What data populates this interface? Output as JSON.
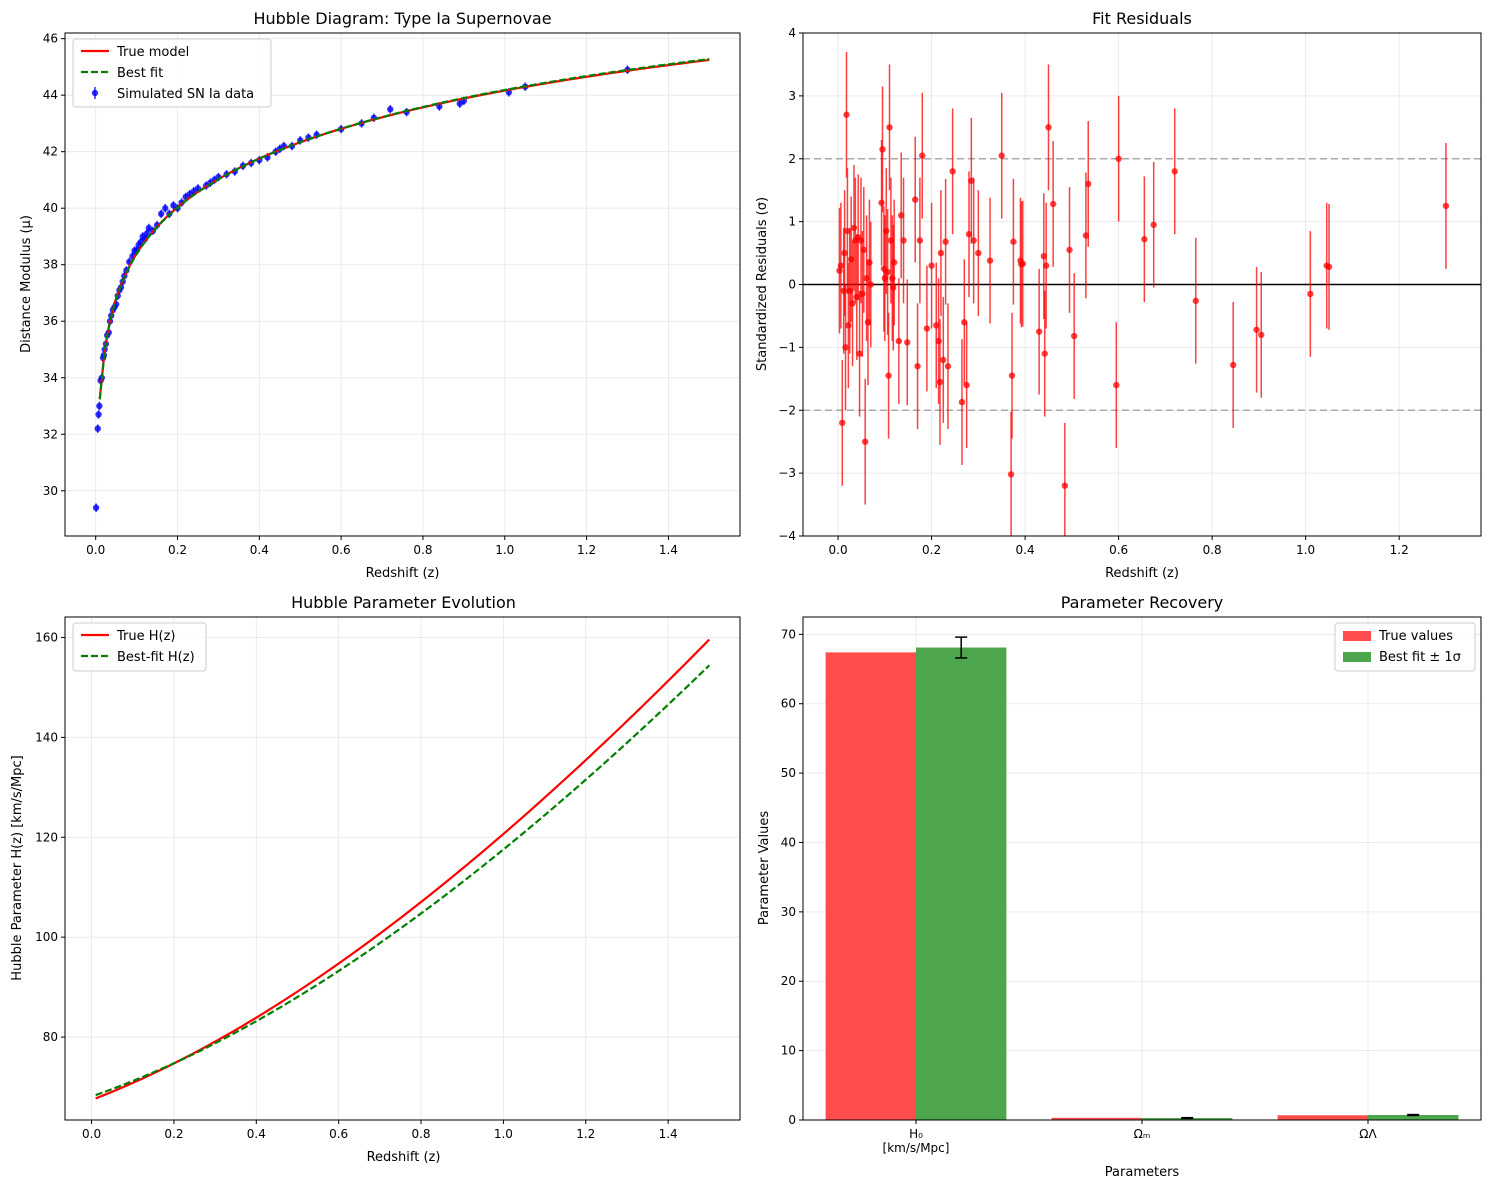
{
  "chart_data": [
    {
      "type": "scatter",
      "title": "Hubble Diagram: Type Ia Supernovae",
      "xlabel": "Redshift (z)",
      "ylabel": "Distance Modulus (μ)",
      "xlim": [
        -0.075,
        1.575
      ],
      "ylim": [
        28.4,
        46.2
      ],
      "xticks": [
        0.0,
        0.2,
        0.4,
        0.6,
        0.8,
        1.0,
        1.2,
        1.4
      ],
      "xtick_labels": [
        "0.0",
        "0.2",
        "0.4",
        "0.6",
        "0.8",
        "1.0",
        "1.2",
        "1.4"
      ],
      "yticks": [
        30,
        32,
        34,
        36,
        38,
        40,
        42,
        44,
        46
      ],
      "ytick_labels": [
        "30",
        "32",
        "34",
        "36",
        "38",
        "40",
        "42",
        "44",
        "46"
      ],
      "grid": true,
      "legend": "top-left",
      "series": [
        {
          "name": "True model",
          "kind": "line",
          "color": "#ff0000",
          "style": "solid",
          "model": "mu",
          "params": {
            "H0": 67.4,
            "Om": 0.315,
            "OL": 0.685
          },
          "xrange": [
            0.01,
            1.5
          ]
        },
        {
          "name": "Best fit",
          "kind": "line",
          "color": "#008000",
          "style": "dashed",
          "model": "mu",
          "params": {
            "H0": 68.1,
            "Om": 0.285,
            "OL": 0.72
          },
          "xrange": [
            0.01,
            1.5
          ]
        },
        {
          "name": "Simulated SN Ia data",
          "kind": "errorbar",
          "color": "#0000ff",
          "x": [
            0.001,
            0.005,
            0.007,
            0.009,
            0.012,
            0.015,
            0.018,
            0.02,
            0.022,
            0.025,
            0.028,
            0.032,
            0.035,
            0.038,
            0.042,
            0.046,
            0.05,
            0.054,
            0.058,
            0.062,
            0.066,
            0.07,
            0.075,
            0.082,
            0.09,
            0.095,
            0.1,
            0.105,
            0.11,
            0.115,
            0.12,
            0.125,
            0.13,
            0.14,
            0.15,
            0.16,
            0.17,
            0.18,
            0.19,
            0.2,
            0.21,
            0.22,
            0.23,
            0.24,
            0.25,
            0.27,
            0.28,
            0.29,
            0.3,
            0.32,
            0.34,
            0.36,
            0.38,
            0.4,
            0.42,
            0.44,
            0.45,
            0.46,
            0.48,
            0.5,
            0.52,
            0.54,
            0.6,
            0.65,
            0.68,
            0.72,
            0.76,
            0.84,
            0.89,
            0.9,
            1.01,
            1.05,
            1.3
          ],
          "y": [
            29.4,
            32.2,
            32.7,
            33.0,
            33.9,
            34.0,
            34.7,
            34.8,
            35.0,
            35.2,
            35.5,
            35.6,
            36.0,
            36.2,
            36.4,
            36.5,
            36.6,
            36.9,
            37.1,
            37.2,
            37.4,
            37.6,
            37.8,
            38.1,
            38.3,
            38.5,
            38.5,
            38.7,
            38.8,
            39.0,
            38.9,
            39.1,
            39.3,
            39.2,
            39.4,
            39.8,
            40.0,
            39.8,
            40.1,
            40.0,
            40.2,
            40.4,
            40.5,
            40.6,
            40.7,
            40.8,
            40.9,
            41.0,
            41.1,
            41.2,
            41.3,
            41.5,
            41.6,
            41.7,
            41.8,
            42.0,
            42.1,
            42.2,
            42.2,
            42.4,
            42.5,
            42.6,
            42.8,
            43.0,
            43.2,
            43.5,
            43.4,
            43.6,
            43.7,
            43.8,
            44.1,
            44.3,
            44.9
          ],
          "yerr": 0.15
        }
      ]
    },
    {
      "type": "scatter",
      "title": "Fit Residuals",
      "xlabel": "Redshift (z)",
      "ylabel": "Standardized Residuals (σ)",
      "xlim": [
        -0.075,
        1.375
      ],
      "ylim": [
        -4,
        4
      ],
      "xticks": [
        0.0,
        0.2,
        0.4,
        0.6,
        0.8,
        1.0,
        1.2
      ],
      "xtick_labels": [
        "0.0",
        "0.2",
        "0.4",
        "0.6",
        "0.8",
        "1.0",
        "1.2"
      ],
      "yticks": [
        -4,
        -3,
        -2,
        -1,
        0,
        1,
        2,
        3,
        4
      ],
      "ytick_labels": [
        "−4",
        "−3",
        "−2",
        "−1",
        "0",
        "1",
        "2",
        "3",
        "4"
      ],
      "grid": true,
      "hlines": [
        {
          "y": 0,
          "color": "#000000",
          "style": "solid"
        },
        {
          "y": 2,
          "color": "#aaaaaa",
          "style": "dashed"
        },
        {
          "y": -2,
          "color": "#aaaaaa",
          "style": "dashed"
        }
      ],
      "series": [
        {
          "name": "",
          "kind": "errorbar",
          "color": "#ff0000",
          "x": [
            0.003,
            0.006,
            0.009,
            0.012,
            0.014,
            0.016,
            0.018,
            0.02,
            0.022,
            0.025,
            0.028,
            0.031,
            0.034,
            0.037,
            0.04,
            0.043,
            0.046,
            0.049,
            0.052,
            0.055,
            0.058,
            0.061,
            0.064,
            0.067,
            0.07,
            0.093,
            0.095,
            0.098,
            0.1,
            0.103,
            0.106,
            0.108,
            0.11,
            0.113,
            0.116,
            0.118,
            0.12,
            0.13,
            0.135,
            0.14,
            0.148,
            0.165,
            0.17,
            0.175,
            0.18,
            0.19,
            0.2,
            0.21,
            0.215,
            0.218,
            0.22,
            0.225,
            0.23,
            0.235,
            0.245,
            0.265,
            0.27,
            0.275,
            0.28,
            0.285,
            0.29,
            0.3,
            0.325,
            0.35,
            0.37,
            0.372,
            0.375,
            0.39,
            0.392,
            0.395,
            0.43,
            0.44,
            0.442,
            0.445,
            0.45,
            0.46,
            0.485,
            0.495,
            0.505,
            0.53,
            0.535,
            0.595,
            0.6,
            0.655,
            0.675,
            0.72,
            0.765,
            0.845,
            0.895,
            0.905,
            1.01,
            1.045,
            1.05,
            1.3
          ],
          "y": [
            0.22,
            0.3,
            -2.2,
            -0.1,
            0.5,
            -1.0,
            2.7,
            0.85,
            -0.65,
            -0.1,
            0.4,
            -0.3,
            0.9,
            0.7,
            -0.2,
            0.75,
            -1.1,
            0.7,
            -0.15,
            0.55,
            -2.5,
            0.1,
            -0.6,
            0.35,
            0.0,
            1.3,
            2.15,
            0.25,
            0.1,
            0.85,
            0.2,
            -1.45,
            2.5,
            0.7,
            0.1,
            -0.05,
            0.35,
            -0.9,
            1.1,
            0.7,
            -0.92,
            1.35,
            -1.3,
            0.7,
            2.05,
            -0.7,
            0.3,
            -0.65,
            -0.9,
            -1.55,
            0.5,
            -1.2,
            0.68,
            -1.3,
            1.8,
            -1.87,
            -0.6,
            -1.6,
            0.8,
            1.65,
            0.7,
            0.5,
            0.38,
            2.05,
            -3.02,
            -1.45,
            0.68,
            0.38,
            0.32,
            0.33,
            -0.75,
            0.45,
            -1.1,
            0.3,
            2.5,
            1.28,
            -3.2,
            0.55,
            -0.82,
            0.78,
            1.6,
            -1.6,
            2.0,
            0.72,
            0.95,
            1.8,
            -0.26,
            -1.28,
            -0.72,
            -0.8,
            -0.15,
            0.3,
            0.28,
            1.25
          ],
          "yerr": 1.0
        }
      ]
    },
    {
      "type": "line",
      "title": "Hubble Parameter Evolution",
      "xlabel": "Redshift (z)",
      "ylabel": "Hubble Parameter H(z) [km/s/Mpc]",
      "xlim": [
        -0.0645,
        1.5745
      ],
      "ylim": [
        63.4,
        164.1
      ],
      "xticks": [
        0.0,
        0.2,
        0.4,
        0.6,
        0.8,
        1.0,
        1.2,
        1.4
      ],
      "xtick_labels": [
        "0.0",
        "0.2",
        "0.4",
        "0.6",
        "0.8",
        "1.0",
        "1.2",
        "1.4"
      ],
      "yticks": [
        80,
        100,
        120,
        140,
        160
      ],
      "ytick_labels": [
        "80",
        "100",
        "120",
        "140",
        "160"
      ],
      "grid": true,
      "legend": "top-left",
      "series": [
        {
          "name": "True H(z)",
          "kind": "line",
          "color": "#ff0000",
          "style": "solid",
          "model": "H",
          "params": {
            "H0": 67.4,
            "Om": 0.315,
            "OL": 0.685
          },
          "xrange": [
            0.01,
            1.5
          ]
        },
        {
          "name": "Best-fit H(z)",
          "kind": "line",
          "color": "#008000",
          "style": "dashed",
          "model": "H",
          "params": {
            "H0": 68.1,
            "Om": 0.285,
            "OL": 0.72
          },
          "xrange": [
            0.01,
            1.5
          ]
        }
      ]
    },
    {
      "type": "bar",
      "title": "Parameter Recovery",
      "xlabel": "Parameters",
      "ylabel": "Parameter Values",
      "categories": [
        "H₀\n[km/s/Mpc]",
        "Ωₘ",
        "ΩΛ"
      ],
      "ylim": [
        0,
        72.5
      ],
      "yticks": [
        0,
        10,
        20,
        30,
        40,
        50,
        60,
        70
      ],
      "ytick_labels": [
        "0",
        "10",
        "20",
        "30",
        "40",
        "50",
        "60",
        "70"
      ],
      "grid": true,
      "legend": "top-right",
      "series": [
        {
          "name": "True values",
          "color": "#ff4d4d",
          "values": [
            67.4,
            0.315,
            0.685
          ]
        },
        {
          "name": "Best fit ± 1σ",
          "color": "#4da64d",
          "values": [
            68.1,
            0.285,
            0.72
          ],
          "errors": [
            1.5,
            0.05,
            0.06
          ]
        }
      ]
    }
  ]
}
